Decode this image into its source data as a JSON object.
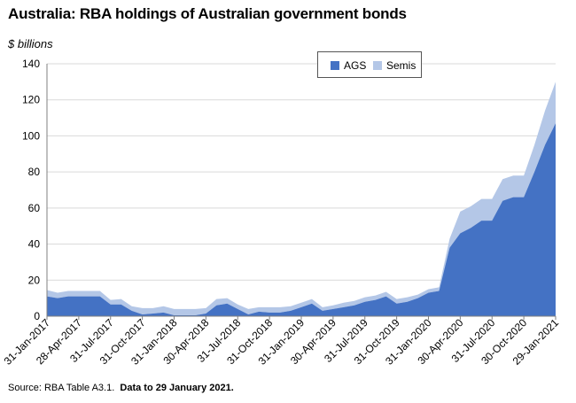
{
  "header": {
    "title": "Australia: RBA holdings of Australian government bonds",
    "unit": "$ billions"
  },
  "footer": {
    "source": "Source: RBA Table A3.1.",
    "note": "Data to 29 January 2021."
  },
  "colors": {
    "ags": "#4472C4",
    "semis": "#B4C7E7",
    "grid": "#D9D9D9"
  },
  "chart_data": {
    "type": "area",
    "stacked": true,
    "ylabel": "$ billions",
    "ylim": [
      0,
      140
    ],
    "yticks": [
      0,
      20,
      40,
      60,
      80,
      100,
      120,
      140
    ],
    "grid": true,
    "legend": "top-right",
    "xtick_labels": [
      "31-Jan-2017",
      "28-Apr-2017",
      "31-Jul-2017",
      "31-Oct-2017",
      "31-Jan-2018",
      "30-Apr-2018",
      "31-Jul-2018",
      "31-Oct-2018",
      "31-Jan-2019",
      "30-Apr-2019",
      "31-Jul-2019",
      "31-Oct-2019",
      "31-Jan-2020",
      "30-Apr-2020",
      "31-Jul-2020",
      "30-Oct-2020",
      "29-Jan-2021"
    ],
    "series": [
      {
        "name": "AGS",
        "values": [
          11,
          10,
          11,
          11,
          11,
          11,
          6.5,
          6.5,
          3,
          1,
          1.5,
          2,
          0.5,
          0.5,
          0.5,
          1.5,
          6,
          7,
          4,
          1,
          2.5,
          2,
          2,
          3,
          5,
          7,
          3,
          4,
          5,
          6,
          8,
          9,
          11,
          7,
          8,
          10,
          13,
          14,
          38,
          46,
          49,
          53,
          53,
          64,
          66,
          66,
          80,
          95,
          107
        ]
      },
      {
        "name": "Semis",
        "values": [
          3.5,
          3,
          3,
          3,
          3,
          3,
          2.5,
          3,
          2.5,
          3.5,
          3,
          3.5,
          3.5,
          3.5,
          3.5,
          3,
          3.5,
          3,
          2.5,
          3,
          2.5,
          3,
          3,
          2.5,
          2.5,
          2.5,
          2,
          2,
          2.5,
          2.5,
          2.5,
          2.5,
          2.5,
          2.5,
          2.5,
          2,
          2,
          2,
          5,
          12,
          12,
          12,
          12,
          12,
          12,
          12,
          15,
          19,
          23
        ]
      }
    ]
  }
}
